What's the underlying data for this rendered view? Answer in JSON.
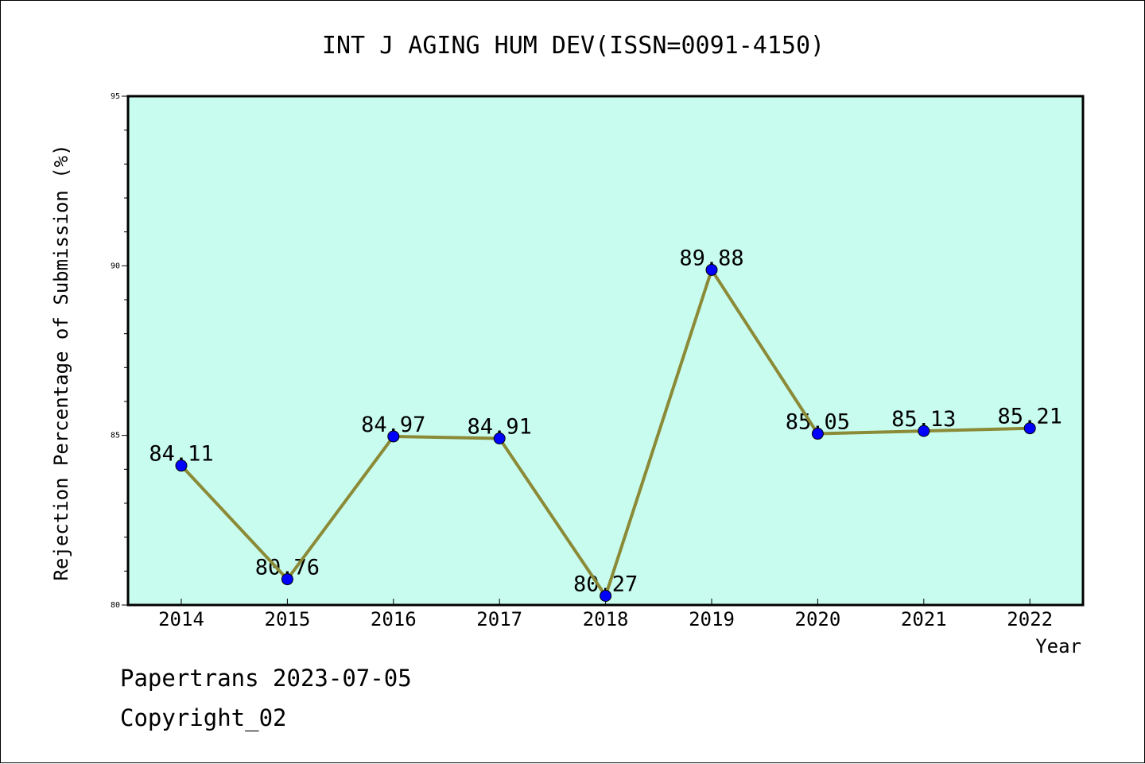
{
  "chart_data": {
    "type": "line",
    "title": "INT J AGING HUM DEV(ISSN=0091-4150)",
    "xlabel": "Year",
    "ylabel": "Rejection Percentage of Submission (%)",
    "categories": [
      "2014",
      "2015",
      "2016",
      "2017",
      "2018",
      "2019",
      "2020",
      "2021",
      "2022"
    ],
    "values": [
      84.11,
      80.76,
      84.97,
      84.91,
      80.27,
      89.88,
      85.05,
      85.13,
      85.21
    ],
    "data_labels": [
      "84.11",
      "80.76",
      "84.97",
      "84.91",
      "80.27",
      "89.88",
      "85.05",
      "85.13",
      "85.21"
    ],
    "ylim": [
      80,
      95
    ],
    "yticks": [
      "80",
      "85",
      "90",
      "95"
    ],
    "grid": false,
    "legend": "none",
    "colors": {
      "plot_background": "#c8fcee",
      "line": "#8b8a37",
      "marker": "#0000ff",
      "axis": "#000000"
    }
  },
  "footer": {
    "line1": "Papertrans 2023-07-05",
    "line2": "Copyright_02"
  }
}
